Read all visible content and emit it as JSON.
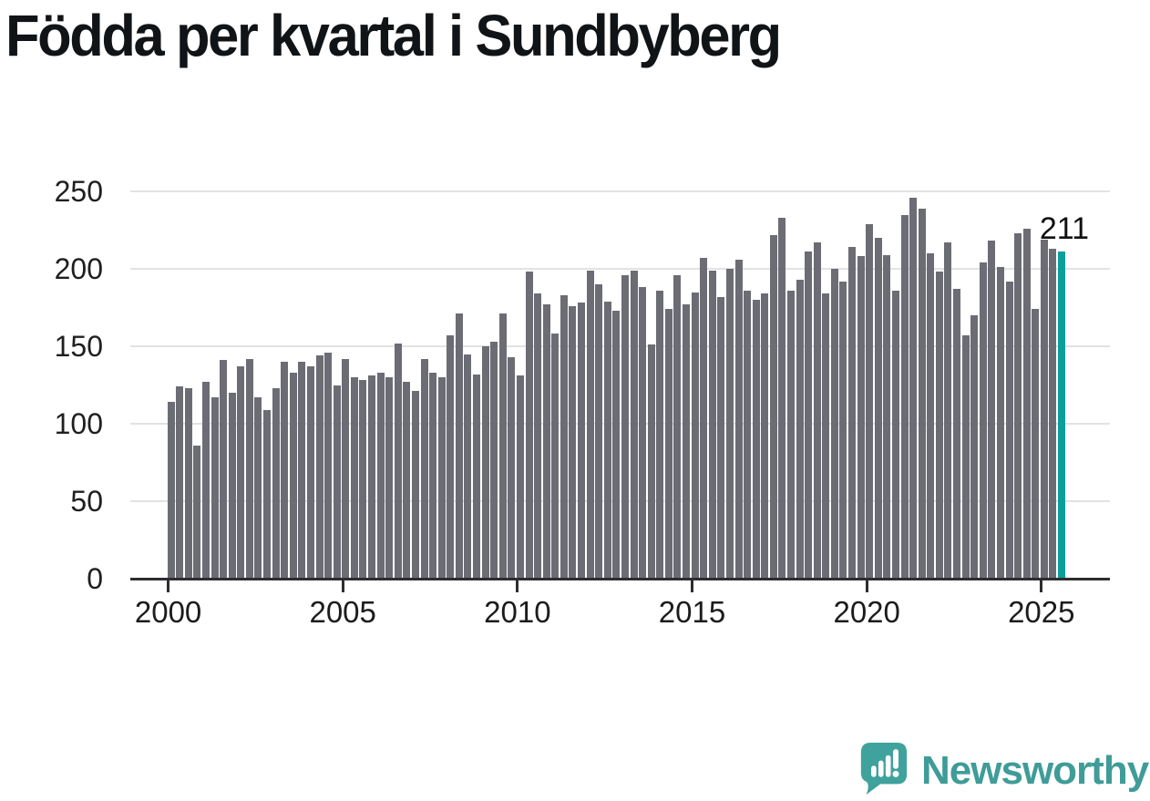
{
  "title": "Födda per kvartal i Sundbyberg",
  "annotation": "211",
  "y_axis": {
    "tick_labels": [
      "0",
      "50",
      "100",
      "150",
      "200",
      "250"
    ]
  },
  "x_axis": {
    "tick_labels": [
      "2000",
      "2005",
      "2010",
      "2015",
      "2020",
      "2025"
    ]
  },
  "logo": {
    "wordmark": "Newsworthy",
    "icon": "newsworthy-speech-bubble-bar-chart-icon"
  },
  "colors": {
    "bar": "#6c6c75",
    "highlight": "#0b9f9c",
    "grid": "#e2e2e2",
    "axis": "#2e2e2e",
    "title": "#111417",
    "labels": "#1f1f1f",
    "logo": "#3f9c98"
  },
  "chart_data": {
    "type": "bar",
    "title": "Födda per kvartal i Sundbyberg",
    "ylim": [
      0,
      250
    ],
    "y_ticks": [
      0,
      50,
      100,
      150,
      200,
      250
    ],
    "x_tick_years": [
      2000,
      2005,
      2010,
      2015,
      2020,
      2025
    ],
    "grid": true,
    "legend": false,
    "highlight_index": 102,
    "highlight_value_label": "211",
    "categories": [
      "2000 Q1",
      "2000 Q2",
      "2000 Q3",
      "2000 Q4",
      "2001 Q1",
      "2001 Q2",
      "2001 Q3",
      "2001 Q4",
      "2002 Q1",
      "2002 Q2",
      "2002 Q3",
      "2002 Q4",
      "2003 Q1",
      "2003 Q2",
      "2003 Q3",
      "2003 Q4",
      "2004 Q1",
      "2004 Q2",
      "2004 Q3",
      "2004 Q4",
      "2005 Q1",
      "2005 Q2",
      "2005 Q3",
      "2005 Q4",
      "2006 Q1",
      "2006 Q2",
      "2006 Q3",
      "2006 Q4",
      "2007 Q1",
      "2007 Q2",
      "2007 Q3",
      "2007 Q4",
      "2008 Q1",
      "2008 Q2",
      "2008 Q3",
      "2008 Q4",
      "2009 Q1",
      "2009 Q2",
      "2009 Q3",
      "2009 Q4",
      "2010 Q1",
      "2010 Q2",
      "2010 Q3",
      "2010 Q4",
      "2011 Q1",
      "2011 Q2",
      "2011 Q3",
      "2011 Q4",
      "2012 Q1",
      "2012 Q2",
      "2012 Q3",
      "2012 Q4",
      "2013 Q1",
      "2013 Q2",
      "2013 Q3",
      "2013 Q4",
      "2014 Q1",
      "2014 Q2",
      "2014 Q3",
      "2014 Q4",
      "2015 Q1",
      "2015 Q2",
      "2015 Q3",
      "2015 Q4",
      "2016 Q1",
      "2016 Q2",
      "2016 Q3",
      "2016 Q4",
      "2017 Q1",
      "2017 Q2",
      "2017 Q3",
      "2017 Q4",
      "2018 Q1",
      "2018 Q2",
      "2018 Q3",
      "2018 Q4",
      "2019 Q1",
      "2019 Q2",
      "2019 Q3",
      "2019 Q4",
      "2020 Q1",
      "2020 Q2",
      "2020 Q3",
      "2020 Q4",
      "2021 Q1",
      "2021 Q2",
      "2021 Q3",
      "2021 Q4",
      "2022 Q1",
      "2022 Q2",
      "2022 Q3",
      "2022 Q4",
      "2023 Q1",
      "2023 Q2",
      "2023 Q3",
      "2023 Q4",
      "2024 Q1",
      "2024 Q2",
      "2024 Q3",
      "2024 Q4",
      "2025 Q1",
      "2025 Q2",
      "2025 Q3"
    ],
    "values": [
      114,
      124,
      123,
      86,
      127,
      117,
      141,
      120,
      137,
      142,
      117,
      109,
      123,
      140,
      133,
      140,
      137,
      144,
      146,
      125,
      142,
      130,
      128,
      131,
      133,
      130,
      152,
      127,
      121,
      142,
      133,
      130,
      157,
      171,
      145,
      132,
      150,
      153,
      171,
      143,
      131,
      198,
      184,
      177,
      158,
      183,
      176,
      178,
      199,
      190,
      179,
      173,
      196,
      199,
      188,
      151,
      186,
      174,
      196,
      177,
      185,
      207,
      199,
      182,
      200,
      206,
      186,
      180,
      184,
      222,
      233,
      186,
      193,
      211,
      217,
      184,
      200,
      192,
      214,
      208,
      229,
      220,
      209,
      186,
      235,
      246,
      239,
      210,
      198,
      217,
      187,
      157,
      170,
      204,
      218,
      201,
      192,
      223,
      226,
      174,
      219,
      213,
      211
    ]
  }
}
